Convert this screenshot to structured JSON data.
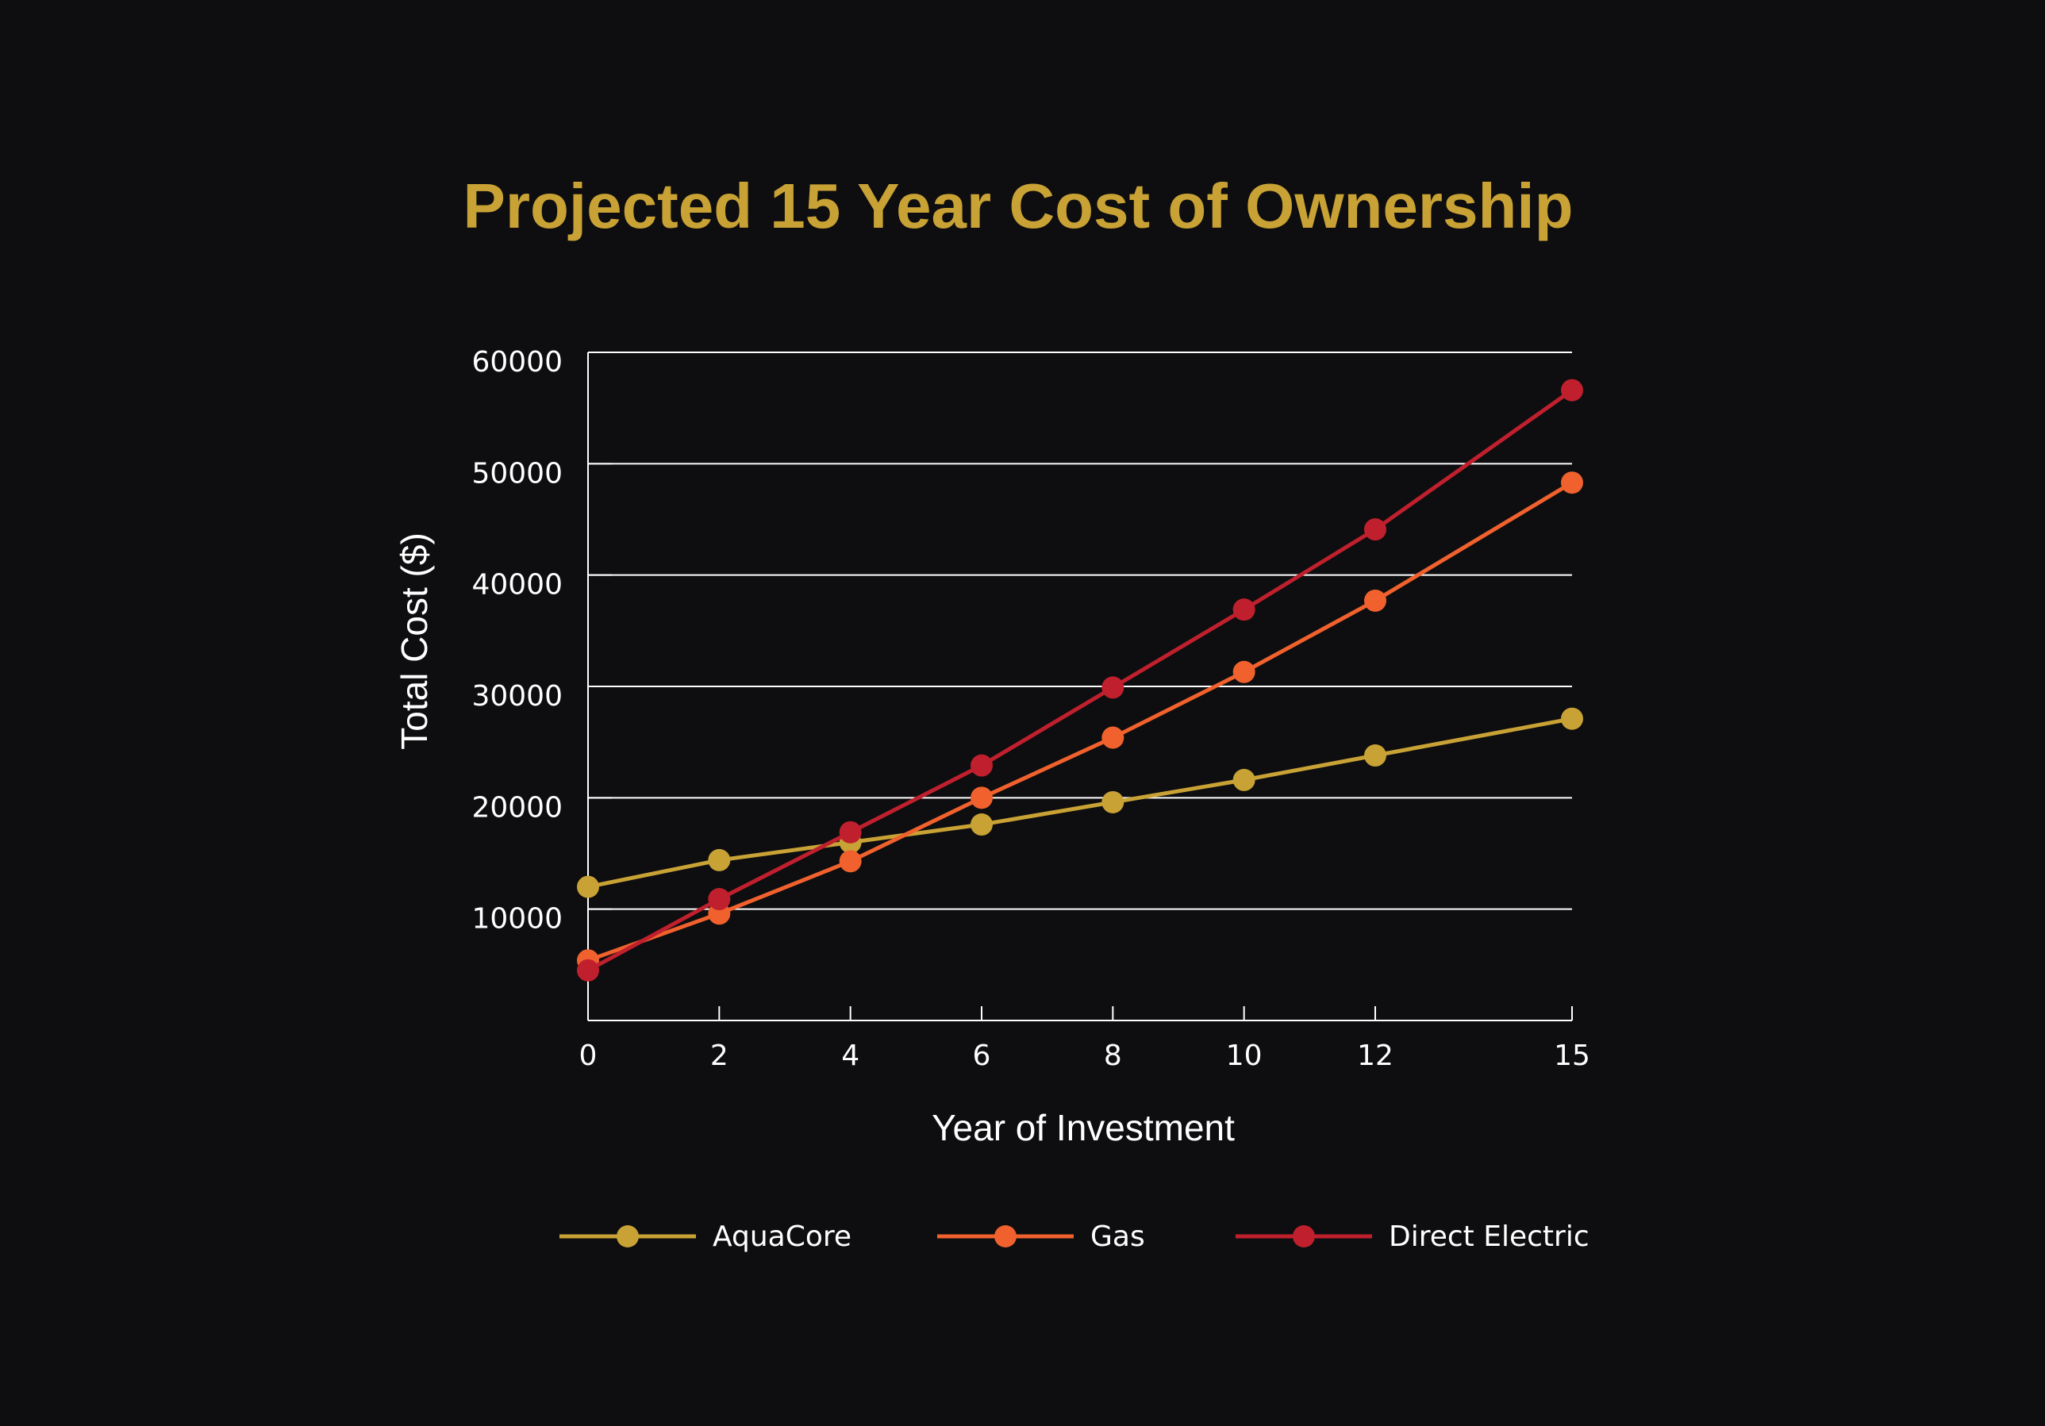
{
  "chart_data": {
    "type": "line",
    "title": "Projected 15 Year Cost of Ownership",
    "xlabel": "Year of Investment",
    "ylabel": "Total Cost ($)",
    "x": [
      0,
      2,
      4,
      6,
      8,
      10,
      12,
      15
    ],
    "x_ticks": [
      "0",
      "2",
      "4",
      "6",
      "8",
      "10",
      "12",
      "15"
    ],
    "y_ticks": [
      "10000",
      "20000",
      "30000",
      "40000",
      "50000",
      "60000"
    ],
    "ylim": [
      0,
      60000
    ],
    "grid": "horizontal",
    "legend_position": "bottom",
    "series": [
      {
        "name": "AquaCore",
        "color": "#c9a235",
        "values": [
          12000,
          14400,
          16000,
          17600,
          19600,
          21600,
          23800,
          27100
        ]
      },
      {
        "name": "Gas",
        "color": "#f0612d",
        "values": [
          5400,
          9600,
          14300,
          20000,
          25400,
          31300,
          37700,
          48300
        ]
      },
      {
        "name": "Direct Electric",
        "color": "#c0202d",
        "values": [
          4500,
          10900,
          16900,
          22900,
          29900,
          36900,
          44100,
          56600
        ]
      }
    ]
  },
  "colors": {
    "background": "#0e0e10",
    "title": "#c9a235",
    "axis": "#ffffff",
    "grid": "#ffffff"
  }
}
